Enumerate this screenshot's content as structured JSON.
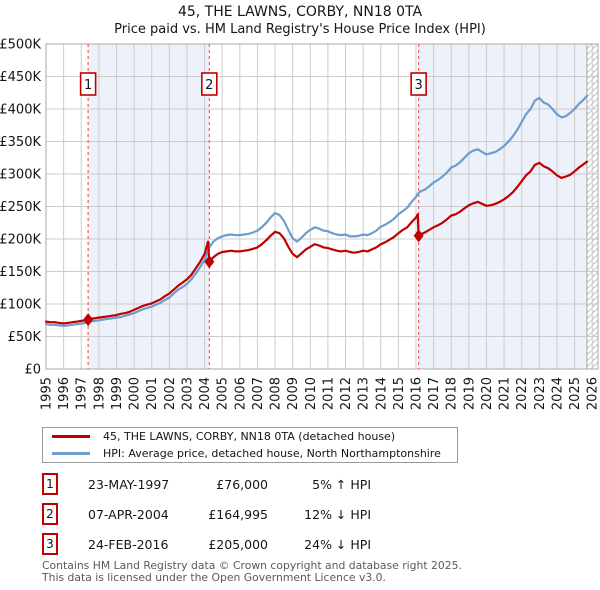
{
  "header": {
    "title": "45, THE LAWNS, CORBY, NN18 0TA",
    "subtitle": "Price paid vs. HM Land Registry's House Price Index (HPI)"
  },
  "chart_data": {
    "type": "line",
    "title": "Price paid vs. HM Land Registry's House Price Index (HPI)",
    "x_axis": {
      "ticks": [
        1995,
        1996,
        1997,
        1998,
        1999,
        2000,
        2001,
        2002,
        2003,
        2004,
        2005,
        2006,
        2007,
        2008,
        2009,
        2010,
        2011,
        2012,
        2013,
        2014,
        2015,
        2016,
        2017,
        2018,
        2019,
        2020,
        2021,
        2022,
        2023,
        2024,
        2025,
        2026
      ],
      "range": [
        1995,
        2026.33
      ]
    },
    "y_axis": {
      "tick_values": [
        0,
        50,
        100,
        150,
        200,
        250,
        300,
        350,
        400,
        450,
        500
      ],
      "tick_labels": [
        "£0",
        "£50K",
        "£100K",
        "£150K",
        "£200K",
        "£250K",
        "£300K",
        "£350K",
        "£400K",
        "£450K",
        "£500K"
      ],
      "unit": "£K",
      "range": [
        0,
        500
      ]
    },
    "grid": true,
    "legend_position": "below",
    "series": [
      {
        "name": "HPI: Average price, detached house, North Northamptonshire",
        "color": "#6d9cce",
        "points": [
          [
            1995,
            69
          ],
          [
            1995.25,
            68
          ],
          [
            1995.5,
            68
          ],
          [
            1995.75,
            67
          ],
          [
            1996,
            66
          ],
          [
            1996.25,
            67
          ],
          [
            1996.5,
            68
          ],
          [
            1996.75,
            69
          ],
          [
            1997,
            70
          ],
          [
            1997.25,
            71
          ],
          [
            1997.39,
            72
          ],
          [
            1997.5,
            73
          ],
          [
            1997.75,
            74
          ],
          [
            1998,
            75
          ],
          [
            1998.25,
            76
          ],
          [
            1998.5,
            77
          ],
          [
            1998.75,
            78
          ],
          [
            1999,
            79
          ],
          [
            1999.25,
            80
          ],
          [
            1999.5,
            82
          ],
          [
            1999.75,
            84
          ],
          [
            2000,
            86
          ],
          [
            2000.25,
            89
          ],
          [
            2000.5,
            92
          ],
          [
            2000.75,
            94
          ],
          [
            2001,
            96
          ],
          [
            2001.25,
            99
          ],
          [
            2001.5,
            102
          ],
          [
            2001.75,
            106
          ],
          [
            2002,
            110
          ],
          [
            2002.25,
            116
          ],
          [
            2002.5,
            122
          ],
          [
            2002.75,
            126
          ],
          [
            2003,
            131
          ],
          [
            2003.25,
            138
          ],
          [
            2003.5,
            147
          ],
          [
            2003.75,
            157
          ],
          [
            2004,
            168
          ],
          [
            2004.27,
            187
          ],
          [
            2004.5,
            196
          ],
          [
            2004.75,
            201
          ],
          [
            2005,
            204
          ],
          [
            2005.25,
            206
          ],
          [
            2005.5,
            207
          ],
          [
            2005.75,
            206
          ],
          [
            2006,
            206
          ],
          [
            2006.25,
            207
          ],
          [
            2006.5,
            208
          ],
          [
            2006.75,
            210
          ],
          [
            2007,
            213
          ],
          [
            2007.25,
            218
          ],
          [
            2007.5,
            225
          ],
          [
            2007.75,
            233
          ],
          [
            2008,
            240
          ],
          [
            2008.25,
            237
          ],
          [
            2008.5,
            228
          ],
          [
            2008.75,
            214
          ],
          [
            2009,
            201
          ],
          [
            2009.25,
            196
          ],
          [
            2009.5,
            202
          ],
          [
            2009.75,
            209
          ],
          [
            2010,
            214
          ],
          [
            2010.25,
            218
          ],
          [
            2010.5,
            216
          ],
          [
            2010.75,
            213
          ],
          [
            2011,
            212
          ],
          [
            2011.25,
            209
          ],
          [
            2011.5,
            207
          ],
          [
            2011.75,
            206
          ],
          [
            2012,
            207
          ],
          [
            2012.25,
            204
          ],
          [
            2012.5,
            204
          ],
          [
            2012.75,
            205
          ],
          [
            2013,
            207
          ],
          [
            2013.25,
            206
          ],
          [
            2013.5,
            209
          ],
          [
            2013.75,
            213
          ],
          [
            2014,
            219
          ],
          [
            2014.25,
            222
          ],
          [
            2014.5,
            226
          ],
          [
            2014.75,
            231
          ],
          [
            2015,
            238
          ],
          [
            2015.25,
            243
          ],
          [
            2015.5,
            248
          ],
          [
            2015.75,
            257
          ],
          [
            2016,
            265
          ],
          [
            2016.15,
            271
          ],
          [
            2016.25,
            273
          ],
          [
            2016.5,
            276
          ],
          [
            2016.75,
            281
          ],
          [
            2017,
            287
          ],
          [
            2017.25,
            291
          ],
          [
            2017.5,
            296
          ],
          [
            2017.75,
            302
          ],
          [
            2018,
            310
          ],
          [
            2018.25,
            313
          ],
          [
            2018.5,
            318
          ],
          [
            2018.75,
            325
          ],
          [
            2019,
            332
          ],
          [
            2019.25,
            336
          ],
          [
            2019.5,
            338
          ],
          [
            2019.75,
            334
          ],
          [
            2020,
            330
          ],
          [
            2020.25,
            332
          ],
          [
            2020.5,
            334
          ],
          [
            2020.75,
            338
          ],
          [
            2021,
            343
          ],
          [
            2021.25,
            350
          ],
          [
            2021.5,
            358
          ],
          [
            2021.75,
            368
          ],
          [
            2022,
            380
          ],
          [
            2022.25,
            392
          ],
          [
            2022.5,
            400
          ],
          [
            2022.75,
            413
          ],
          [
            2023,
            417
          ],
          [
            2023.25,
            410
          ],
          [
            2023.5,
            407
          ],
          [
            2023.75,
            400
          ],
          [
            2024,
            392
          ],
          [
            2024.25,
            387
          ],
          [
            2024.5,
            389
          ],
          [
            2024.75,
            394
          ],
          [
            2025,
            400
          ],
          [
            2025.25,
            408
          ],
          [
            2025.5,
            414
          ],
          [
            2025.7,
            420
          ]
        ]
      },
      {
        "name": "45, THE LAWNS, CORBY, NN18 0TA (detached house)",
        "color": "#c00000",
        "points": [
          [
            1995,
            73
          ],
          [
            1995.25,
            72
          ],
          [
            1995.5,
            72
          ],
          [
            1995.75,
            71
          ],
          [
            1996,
            70
          ],
          [
            1996.25,
            71
          ],
          [
            1996.5,
            72
          ],
          [
            1996.75,
            73
          ],
          [
            1997,
            74
          ],
          [
            1997.25,
            75
          ],
          [
            1997.39,
            76
          ],
          [
            1997.5,
            77
          ],
          [
            1997.75,
            78
          ],
          [
            1998,
            79
          ],
          [
            1998.25,
            80
          ],
          [
            1998.5,
            81
          ],
          [
            1998.75,
            82
          ],
          [
            1999,
            83
          ],
          [
            1999.25,
            85
          ],
          [
            1999.5,
            86
          ],
          [
            1999.75,
            88
          ],
          [
            2000,
            91
          ],
          [
            2000.25,
            94
          ],
          [
            2000.5,
            97
          ],
          [
            2000.75,
            99
          ],
          [
            2001,
            101
          ],
          [
            2001.25,
            104
          ],
          [
            2001.5,
            107
          ],
          [
            2001.75,
            112
          ],
          [
            2002,
            116
          ],
          [
            2002.25,
            122
          ],
          [
            2002.5,
            128
          ],
          [
            2002.75,
            133
          ],
          [
            2003,
            138
          ],
          [
            2003.25,
            145
          ],
          [
            2003.5,
            155
          ],
          [
            2003.75,
            165
          ],
          [
            2004,
            177
          ],
          [
            2004.2,
            196
          ],
          [
            2004.27,
            165
          ],
          [
            2004.5,
            172
          ],
          [
            2004.75,
            177
          ],
          [
            2005,
            180
          ],
          [
            2005.25,
            181
          ],
          [
            2005.5,
            182
          ],
          [
            2005.75,
            181
          ],
          [
            2006,
            181
          ],
          [
            2006.25,
            182
          ],
          [
            2006.5,
            183
          ],
          [
            2006.75,
            185
          ],
          [
            2007,
            187
          ],
          [
            2007.25,
            192
          ],
          [
            2007.5,
            198
          ],
          [
            2007.75,
            205
          ],
          [
            2008,
            211
          ],
          [
            2008.25,
            209
          ],
          [
            2008.5,
            201
          ],
          [
            2008.75,
            188
          ],
          [
            2009,
            177
          ],
          [
            2009.25,
            172
          ],
          [
            2009.5,
            178
          ],
          [
            2009.75,
            184
          ],
          [
            2010,
            188
          ],
          [
            2010.25,
            192
          ],
          [
            2010.5,
            190
          ],
          [
            2010.75,
            187
          ],
          [
            2011,
            186
          ],
          [
            2011.25,
            184
          ],
          [
            2011.5,
            182
          ],
          [
            2011.75,
            181
          ],
          [
            2012,
            182
          ],
          [
            2012.25,
            180
          ],
          [
            2012.5,
            179
          ],
          [
            2012.75,
            180
          ],
          [
            2013,
            182
          ],
          [
            2013.25,
            181
          ],
          [
            2013.5,
            184
          ],
          [
            2013.75,
            187
          ],
          [
            2014,
            192
          ],
          [
            2014.25,
            195
          ],
          [
            2014.5,
            199
          ],
          [
            2014.75,
            203
          ],
          [
            2015,
            209
          ],
          [
            2015.25,
            214
          ],
          [
            2015.5,
            218
          ],
          [
            2015.75,
            226
          ],
          [
            2016,
            233
          ],
          [
            2016.1,
            238
          ],
          [
            2016.15,
            205
          ],
          [
            2016.25,
            207
          ],
          [
            2016.5,
            210
          ],
          [
            2016.75,
            214
          ],
          [
            2017,
            218
          ],
          [
            2017.25,
            221
          ],
          [
            2017.5,
            225
          ],
          [
            2017.75,
            230
          ],
          [
            2018,
            236
          ],
          [
            2018.25,
            238
          ],
          [
            2018.5,
            242
          ],
          [
            2018.75,
            247
          ],
          [
            2019,
            252
          ],
          [
            2019.25,
            255
          ],
          [
            2019.5,
            257
          ],
          [
            2019.75,
            254
          ],
          [
            2020,
            251
          ],
          [
            2020.25,
            252
          ],
          [
            2020.5,
            254
          ],
          [
            2020.75,
            257
          ],
          [
            2021,
            261
          ],
          [
            2021.25,
            266
          ],
          [
            2021.5,
            272
          ],
          [
            2021.75,
            280
          ],
          [
            2022,
            289
          ],
          [
            2022.25,
            298
          ],
          [
            2022.5,
            304
          ],
          [
            2022.75,
            314
          ],
          [
            2023,
            317
          ],
          [
            2023.25,
            312
          ],
          [
            2023.5,
            309
          ],
          [
            2023.75,
            304
          ],
          [
            2024,
            298
          ],
          [
            2024.25,
            294
          ],
          [
            2024.5,
            296
          ],
          [
            2024.75,
            299
          ],
          [
            2025,
            304
          ],
          [
            2025.25,
            310
          ],
          [
            2025.5,
            315
          ],
          [
            2025.7,
            319
          ]
        ]
      }
    ],
    "sales": [
      {
        "n": "1",
        "year": 1997.39,
        "price_k": 76,
        "date": "23-MAY-1997",
        "price": "£76,000",
        "hpi_diff": "5% ↑ HPI"
      },
      {
        "n": "2",
        "year": 2004.27,
        "price_k": 165,
        "date": "07-APR-2004",
        "price": "£164,995",
        "hpi_diff": "12% ↓ HPI"
      },
      {
        "n": "3",
        "year": 2016.15,
        "price_k": 205,
        "date": "24-FEB-2016",
        "price": "£205,000",
        "hpi_diff": "24% ↓ HPI"
      }
    ],
    "shaded_periods": [
      [
        1997.39,
        2004.27
      ],
      [
        2016.15,
        2025.7
      ]
    ],
    "hatch_period": [
      2025.7,
      2026.33
    ],
    "colors": {
      "property_line": "#c00000",
      "hpi_line": "#6d9cce",
      "sale_marker": "#c00000",
      "event_dash": "#ee6a6a",
      "shade": "#edf1f9",
      "grid": "#cccccc",
      "plot_border": "#aaaaaa",
      "hatch_line": "#b9bdc6"
    }
  },
  "legend": {
    "items": [
      {
        "swatch": "#c00000",
        "label": "45, THE LAWNS, CORBY, NN18 0TA (detached house)"
      },
      {
        "swatch": "#6d9cce",
        "label": "HPI: Average price, detached house, North Northamptonshire"
      }
    ]
  },
  "footer": {
    "line1": "Contains HM Land Registry data © Crown copyright and database right 2025.",
    "line2": "This data is licensed under the Open Government Licence v3.0."
  }
}
